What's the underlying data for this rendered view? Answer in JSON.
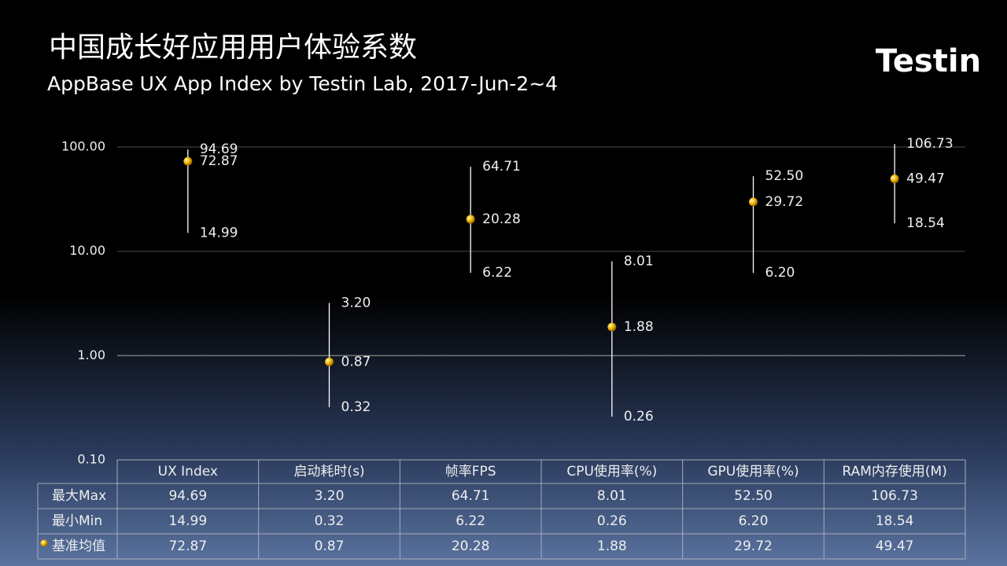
{
  "chart_data": {
    "type": "hilo",
    "title": "中国成长好应用用户体验系数",
    "subtitle": "AppBase UX App Index by Testin Lab, 2017-Jun-2~4",
    "logo": "Testin",
    "categories": [
      "UX Index",
      "启动耗时(s)",
      "帧率FPS",
      "CPU使用率(%)",
      "GPU使用率(%)",
      "RAM内存使用(M)"
    ],
    "series": [
      {
        "name": "最大Max",
        "color": "#ffffff",
        "values": [
          94.69,
          3.2,
          64.71,
          8.01,
          52.5,
          106.73
        ],
        "value_labels": [
          "94.69",
          "3.20",
          "64.71",
          "8.01",
          "52.50",
          "106.73"
        ]
      },
      {
        "name": "最小Min",
        "color": "#ffffff",
        "values": [
          14.99,
          0.32,
          6.22,
          0.26,
          6.2,
          18.54
        ],
        "value_labels": [
          "14.99",
          "0.32",
          "6.22",
          "0.26",
          "6.20",
          "18.54"
        ]
      },
      {
        "name": "基准均值",
        "color": "#f2b600",
        "values": [
          72.87,
          0.87,
          20.28,
          1.88,
          29.72,
          49.47
        ],
        "value_labels": [
          "72.87",
          "0.87",
          "20.28",
          "1.88",
          "29.72",
          "49.47"
        ]
      }
    ],
    "ylim": [
      0.1,
      100
    ],
    "log_scale": true,
    "grid": true,
    "yticks": [
      {
        "value": 0.1,
        "label": "0.10"
      },
      {
        "value": 1,
        "label": "1.00"
      },
      {
        "value": 10,
        "label": "10.00"
      },
      {
        "value": 100,
        "label": "100.00"
      }
    ]
  }
}
